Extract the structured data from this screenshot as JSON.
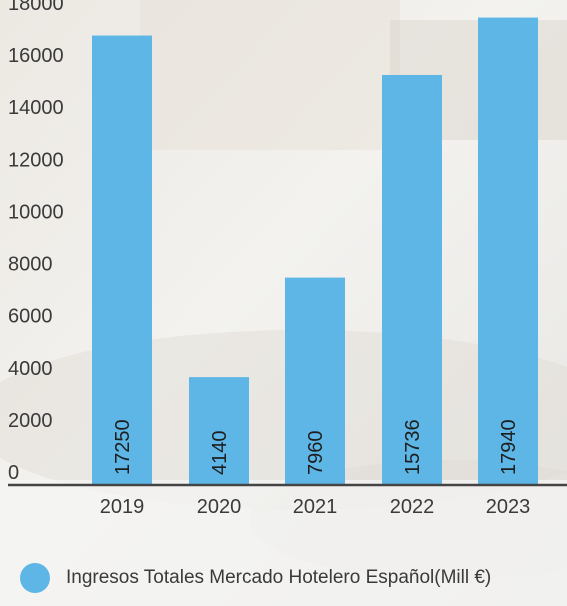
{
  "chart_data": {
    "type": "bar",
    "categories": [
      "2019",
      "2020",
      "2021",
      "2022",
      "2023"
    ],
    "series": [
      {
        "name": "Ingresos Totales Mercado Hotelero Español(Mill €)",
        "values": [
          17250,
          4140,
          7960,
          15736,
          17940
        ]
      }
    ],
    "y_ticks": [
      "0",
      "2000",
      "4000",
      "6000",
      "8000",
      "10000",
      "12000",
      "14000",
      "16000",
      "18000"
    ],
    "ylim": [
      0,
      18000
    ],
    "grid": false,
    "legend_position": "bottom-left",
    "bar_color": "#5db6e6",
    "axis_color": "#444444"
  }
}
